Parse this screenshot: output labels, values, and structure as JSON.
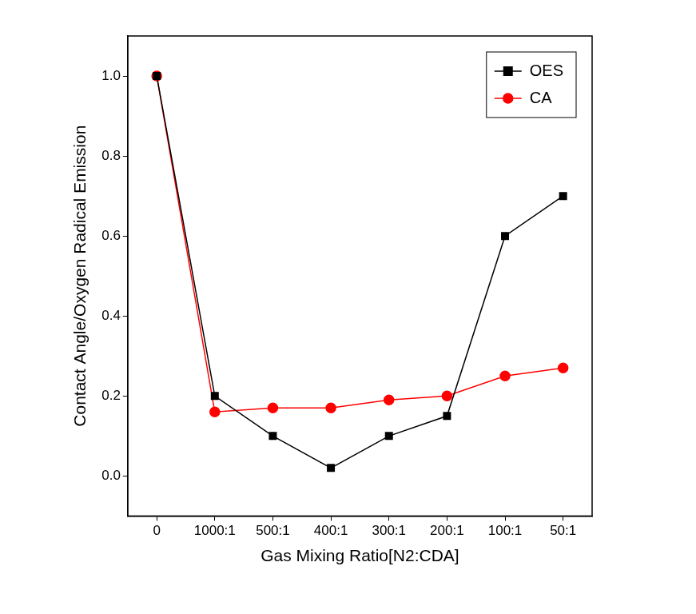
{
  "chart_data": {
    "type": "line",
    "x_label": "Gas Mixing Ratio[N2:CDA]",
    "y_label": "Contact Angle/Oxygen Radical Emission",
    "categories": [
      "0",
      "1000:1",
      "500:1",
      "400:1",
      "300:1",
      "200:1",
      "100:1",
      "50:1"
    ],
    "series": [
      {
        "name": "OES",
        "color": "#000000",
        "marker": "square",
        "line_style": "solid",
        "values": [
          1.0,
          0.2,
          0.1,
          0.02,
          0.1,
          0.15,
          0.6,
          0.7
        ]
      },
      {
        "name": "CA",
        "color": "#ff0000",
        "marker": "circle",
        "line_style": "solid",
        "values": [
          1.0,
          0.16,
          0.17,
          0.17,
          0.19,
          0.2,
          0.25,
          0.27
        ]
      }
    ],
    "ylim": [
      -0.1,
      1.1
    ],
    "yticks": [
      {
        "value": 0,
        "label": "0.0"
      },
      0.2,
      0.4,
      0.6,
      0.8,
      {
        "value": 1,
        "label": "1.0"
      }
    ],
    "grid": false,
    "legend": "upper right"
  }
}
